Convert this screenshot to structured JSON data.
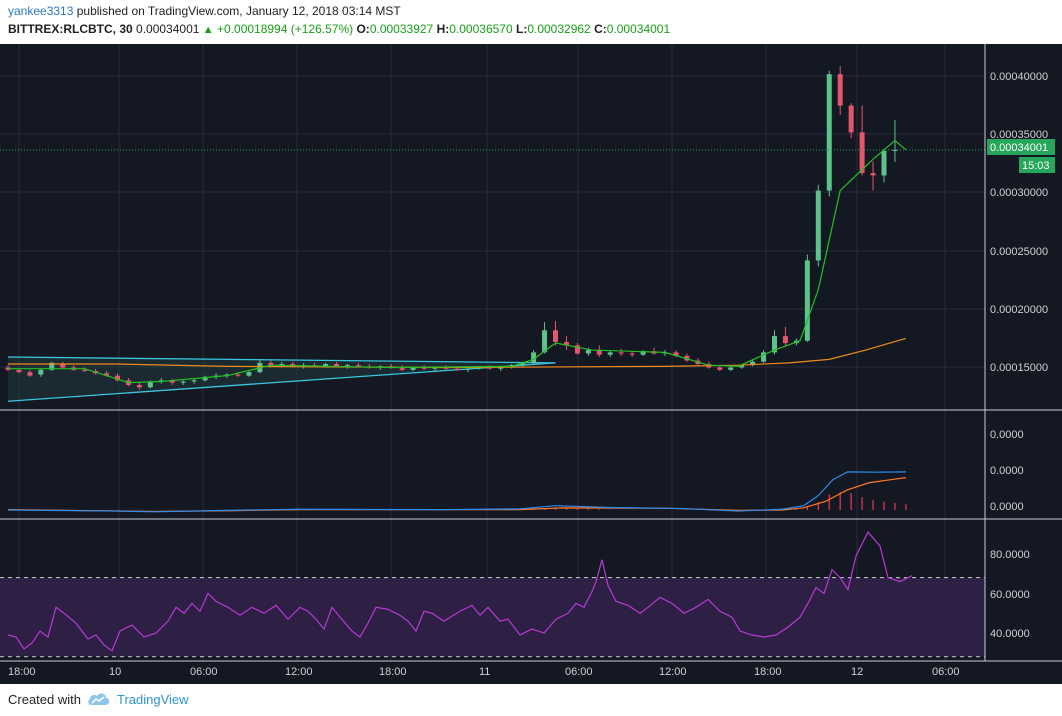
{
  "header": {
    "author": "yankee3313",
    "published_text": "published on TradingView.com, January 12, 2018 03:14 MST",
    "symbol": "BITTREX:RLCBTC, 30",
    "last_price": "0.00034001",
    "change_arrow": "▲",
    "change": "+0.00018994 (+126.57%)",
    "o_label": "O:",
    "o_value": "0.00033927",
    "h_label": "H:",
    "h_value": "0.00036570",
    "l_label": "L:",
    "l_value": "0.00032962",
    "c_label": "C:",
    "c_value": "0.00034001"
  },
  "price_axis": {
    "labels": [
      "0.00040000",
      "0.00035000",
      "0.00030000",
      "0.00025000",
      "0.00020000",
      "0.00015000"
    ],
    "last_price_tag": "0.00034001",
    "countdown_tag": "15:03"
  },
  "macd_axis": {
    "labels": [
      "0.0000",
      "0.0000",
      "0.0000"
    ]
  },
  "rsi_axis": {
    "labels": [
      "80.0000",
      "60.0000",
      "40.0000"
    ]
  },
  "time_axis": {
    "labels": [
      "18:00",
      "10",
      "06:00",
      "12:00",
      "18:00",
      "11",
      "06:00",
      "12:00",
      "18:00",
      "12",
      "06:00"
    ]
  },
  "colors": {
    "background": "#141823",
    "up_candle": "#5fc28c",
    "down_candle": "#e3566c",
    "ma_fast": "#23c123",
    "ma_slow": "#f08a1c",
    "triangle": "#39c6de",
    "macd_line": "#2e8bf0",
    "signal_line": "#ff7a1f",
    "histogram": "#d8304c",
    "rsi_line": "#b63ad3",
    "rsi_band": "#2e1f45",
    "last_price": "#26a65b"
  },
  "chart_data": {
    "type": "candlestick",
    "symbol": "BITTREX:RLCBTC",
    "interval": "30",
    "price_ylim": [
      0.00012,
      0.00043
    ],
    "candles": [
      [
        0,
        0.000153,
        0.000155,
        0.00015,
        0.000151
      ],
      [
        3,
        0.000151,
        0.000153,
        0.000148,
        0.000149
      ],
      [
        6,
        0.000149,
        0.000151,
        0.000145,
        0.000146
      ],
      [
        9,
        0.000147,
        0.000152,
        0.000145,
        0.000151
      ],
      [
        12,
        0.000151,
        0.000158,
        0.00015,
        0.000157
      ],
      [
        15,
        0.000156,
        0.000158,
        0.000152,
        0.000153
      ],
      [
        18,
        0.000153,
        0.000155,
        0.00015,
        0.000151
      ],
      [
        21,
        0.000151,
        0.000153,
        0.000149,
        0.00015
      ],
      [
        24,
        0.00015,
        0.000152,
        0.000147,
        0.000148
      ],
      [
        27,
        0.000148,
        0.00015,
        0.000145,
        0.000146
      ],
      [
        30,
        0.000146,
        0.000148,
        0.000141,
        0.000142
      ],
      [
        33,
        0.000142,
        0.000144,
        0.000137,
        0.000138
      ],
      [
        36,
        0.000138,
        0.00014,
        0.000134,
        0.000136
      ],
      [
        39,
        0.000136,
        0.000142,
        0.000135,
        0.000141
      ],
      [
        42,
        0.000141,
        0.000144,
        0.000139,
        0.000142
      ],
      [
        45,
        0.000142,
        0.000143,
        0.000138,
        0.00014
      ],
      [
        48,
        0.00014,
        0.000142,
        0.000138,
        0.000141
      ],
      [
        51,
        0.000141,
        0.000143,
        0.000139,
        0.000142
      ],
      [
        54,
        0.000142,
        0.000146,
        0.000141,
        0.000145
      ],
      [
        57,
        0.000145,
        0.000148,
        0.000143,
        0.000146
      ],
      [
        60,
        0.000146,
        0.000148,
        0.000144,
        0.000147
      ],
      [
        63,
        0.000147,
        0.000149,
        0.000145,
        0.000146
      ],
      [
        66,
        0.000146,
        0.00015,
        0.000145,
        0.000149
      ],
      [
        69,
        0.000149,
        0.00016,
        0.000148,
        0.000157
      ],
      [
        72,
        0.000157,
        0.000159,
        0.000153,
        0.000155
      ],
      [
        75,
        0.000155,
        0.000158,
        0.000153,
        0.000156
      ],
      [
        78,
        0.000156,
        0.000158,
        0.000153,
        0.000154
      ],
      [
        81,
        0.000154,
        0.000157,
        0.000152,
        0.000155
      ],
      [
        84,
        0.000155,
        0.000157,
        0.000153,
        0.000154
      ],
      [
        87,
        0.000154,
        0.000157,
        0.000153,
        0.000156
      ],
      [
        90,
        0.000156,
        0.000158,
        0.000153,
        0.000154
      ],
      [
        93,
        0.000154,
        0.000156,
        0.000152,
        0.000155
      ],
      [
        96,
        0.000155,
        0.000157,
        0.000153,
        0.000154
      ],
      [
        99,
        0.000154,
        0.000156,
        0.000152,
        0.000153
      ],
      [
        102,
        0.000153,
        0.000155,
        0.000151,
        0.000154
      ],
      [
        105,
        0.000154,
        0.000156,
        0.000152,
        0.000153
      ],
      [
        108,
        0.000153,
        0.000155,
        0.00015,
        0.000151
      ],
      [
        111,
        0.000151,
        0.000154,
        0.00015,
        0.000153
      ],
      [
        114,
        0.000153,
        0.000155,
        0.000151,
        0.000152
      ],
      [
        117,
        0.000152,
        0.000154,
        0.00015,
        0.000153
      ],
      [
        120,
        0.000153,
        0.000155,
        0.000151,
        0.000152
      ],
      [
        123,
        0.000152,
        0.000154,
        0.00015,
        0.000151
      ],
      [
        126,
        0.000151,
        0.000153,
        0.000149,
        0.000152
      ],
      [
        129,
        0.000152,
        0.000154,
        0.000151,
        0.000153
      ],
      [
        132,
        0.000153,
        0.000155,
        0.000151,
        0.000152
      ],
      [
        135,
        0.000152,
        0.000154,
        0.00015,
        0.000153
      ],
      [
        138,
        0.000153,
        0.000156,
        0.000152,
        0.000155
      ],
      [
        141,
        0.000155,
        0.000158,
        0.000153,
        0.000157
      ],
      [
        144,
        0.000157,
        0.000168,
        0.000156,
        0.000166
      ],
      [
        147,
        0.000166,
        0.000192,
        0.000165,
        0.000185
      ],
      [
        150,
        0.000185,
        0.000193,
        0.000172,
        0.000175
      ],
      [
        153,
        0.000175,
        0.00018,
        0.000168,
        0.000172
      ],
      [
        156,
        0.000172,
        0.000174,
        0.000164,
        0.000165
      ],
      [
        159,
        0.000165,
        0.00017,
        0.000163,
        0.000168
      ],
      [
        162,
        0.000168,
        0.000172,
        0.000162,
        0.000164
      ],
      [
        165,
        0.000164,
        0.000168,
        0.000162,
        0.000166
      ],
      [
        168,
        0.000166,
        0.000169,
        0.000163,
        0.000165
      ],
      [
        171,
        0.000165,
        0.000167,
        0.000162,
        0.000164
      ],
      [
        174,
        0.000164,
        0.000168,
        0.000163,
        0.000167
      ],
      [
        177,
        0.000167,
        0.00017,
        0.000164,
        0.000165
      ],
      [
        180,
        0.000165,
        0.000168,
        0.000163,
        0.000166
      ],
      [
        183,
        0.000166,
        0.000168,
        0.000162,
        0.000163
      ],
      [
        186,
        0.000163,
        0.000165,
        0.000158,
        0.000159
      ],
      [
        189,
        0.000159,
        0.000161,
        0.000155,
        0.000156
      ],
      [
        192,
        0.000156,
        0.000158,
        0.000152,
        0.000153
      ],
      [
        195,
        0.000153,
        0.000155,
        0.00015,
        0.000151
      ],
      [
        198,
        0.000151,
        0.000154,
        0.00015,
        0.000153
      ],
      [
        201,
        0.000153,
        0.000156,
        0.000152,
        0.000155
      ],
      [
        204,
        0.000155,
        0.00016,
        0.000154,
        0.000158
      ],
      [
        207,
        0.000158,
        0.000168,
        0.000157,
        0.000166
      ],
      [
        210,
        0.000166,
        0.000185,
        0.000164,
        0.00018
      ],
      [
        213,
        0.00018,
        0.000188,
        0.000172,
        0.000174
      ],
      [
        216,
        0.000174,
        0.000178,
        0.000172,
        0.000176
      ],
      [
        219,
        0.000176,
        0.00025,
        0.000175,
        0.000245
      ],
      [
        222,
        0.000245,
        0.00031,
        0.00024,
        0.000305
      ],
      [
        225,
        0.000305,
        0.000408,
        0.0003,
        0.000405
      ],
      [
        228,
        0.000405,
        0.000412,
        0.00037,
        0.000378
      ],
      [
        231,
        0.000378,
        0.00038,
        0.00035,
        0.000355
      ],
      [
        234,
        0.000355,
        0.000378,
        0.000318,
        0.00032
      ],
      [
        237,
        0.00032,
        0.00033,
        0.000305,
        0.000318
      ],
      [
        240,
        0.000318,
        0.00034,
        0.000312,
        0.000339
      ],
      [
        243,
        0.000339,
        0.0003657,
        0.0003296,
        0.00034
      ]
    ],
    "ma_fast": [
      [
        0,
        0.000152
      ],
      [
        21,
        0.000152
      ],
      [
        33,
        0.00014
      ],
      [
        42,
        0.000141
      ],
      [
        60,
        0.000146
      ],
      [
        72,
        0.000155
      ],
      [
        105,
        0.000153
      ],
      [
        138,
        0.000154
      ],
      [
        144,
        0.00016
      ],
      [
        150,
        0.000174
      ],
      [
        160,
        0.000168
      ],
      [
        180,
        0.000166
      ],
      [
        192,
        0.000155
      ],
      [
        200,
        0.000154
      ],
      [
        210,
        0.000168
      ],
      [
        217,
        0.000176
      ],
      [
        222,
        0.00022
      ],
      [
        228,
        0.000305
      ],
      [
        237,
        0.000332
      ],
      [
        243,
        0.000348
      ],
      [
        246,
        0.00034
      ]
    ],
    "ma_slow": [
      [
        0,
        0.000156
      ],
      [
        30,
        0.000156
      ],
      [
        60,
        0.000154
      ],
      [
        120,
        0.000153
      ],
      [
        180,
        0.000154
      ],
      [
        200,
        0.000155
      ],
      [
        214,
        0.000157
      ],
      [
        225,
        0.00016
      ],
      [
        235,
        0.000168
      ],
      [
        246,
        0.000178
      ]
    ],
    "triangle_upper": [
      [
        0,
        0.000162
      ],
      [
        150,
        0.000157
      ]
    ],
    "triangle_lower": [
      [
        0,
        0.000124
      ],
      [
        150,
        0.000157
      ]
    ],
    "macd_ylim": [
      -1.0,
      6.5
    ],
    "macd_line": [
      [
        0,
        0
      ],
      [
        30,
        -0.15
      ],
      [
        40,
        -0.25
      ],
      [
        60,
        -0.05
      ],
      [
        80,
        0.1
      ],
      [
        120,
        0.05
      ],
      [
        140,
        0.15
      ],
      [
        150,
        0.6
      ],
      [
        165,
        0.35
      ],
      [
        185,
        0.2
      ],
      [
        200,
        -0.15
      ],
      [
        212,
        0.1
      ],
      [
        218,
        0.6
      ],
      [
        222,
        2.0
      ],
      [
        226,
        4.2
      ],
      [
        230,
        5.3
      ],
      [
        238,
        5.25
      ],
      [
        246,
        5.3
      ]
    ],
    "signal_line": [
      [
        0,
        0.05
      ],
      [
        40,
        -0.2
      ],
      [
        60,
        -0.1
      ],
      [
        80,
        0.05
      ],
      [
        140,
        0.05
      ],
      [
        152,
        0.3
      ],
      [
        180,
        0.25
      ],
      [
        200,
        -0.05
      ],
      [
        212,
        0.0
      ],
      [
        218,
        0.3
      ],
      [
        224,
        1.2
      ],
      [
        230,
        2.8
      ],
      [
        236,
        3.8
      ],
      [
        246,
        4.5
      ]
    ],
    "rsi_ylim": [
      25,
      95
    ],
    "rsi_levels": [
      30,
      70
    ],
    "rsi_line": [
      [
        0,
        41
      ],
      [
        4,
        40
      ],
      [
        8,
        34
      ],
      [
        12,
        37
      ],
      [
        16,
        43
      ],
      [
        20,
        40
      ],
      [
        24,
        55
      ],
      [
        28,
        52
      ],
      [
        34,
        47
      ],
      [
        40,
        39
      ],
      [
        44,
        41
      ],
      [
        48,
        36
      ],
      [
        52,
        33
      ],
      [
        56,
        43
      ],
      [
        62,
        46
      ],
      [
        68,
        40
      ],
      [
        74,
        42
      ],
      [
        80,
        48
      ],
      [
        84,
        55
      ],
      [
        88,
        52
      ],
      [
        92,
        57
      ],
      [
        96,
        53
      ],
      [
        100,
        62
      ],
      [
        104,
        58
      ],
      [
        110,
        55
      ],
      [
        116,
        51
      ],
      [
        122,
        55
      ],
      [
        128,
        52
      ],
      [
        134,
        56
      ],
      [
        140,
        49
      ],
      [
        146,
        55
      ],
      [
        150,
        53
      ],
      [
        154,
        49
      ],
      [
        158,
        44
      ],
      [
        162,
        55
      ],
      [
        166,
        50
      ],
      [
        172,
        43
      ],
      [
        176,
        40
      ],
      [
        180,
        47
      ],
      [
        184,
        55
      ],
      [
        190,
        54
      ],
      [
        196,
        51
      ],
      [
        200,
        48
      ],
      [
        204,
        43
      ],
      [
        208,
        53
      ],
      [
        212,
        52
      ],
      [
        218,
        48
      ],
      [
        226,
        53
      ],
      [
        232,
        56
      ],
      [
        236,
        51
      ],
      [
        240,
        55
      ],
      [
        246,
        48
      ],
      [
        250,
        49
      ],
      [
        256,
        41
      ],
      [
        262,
        44
      ],
      [
        268,
        42
      ],
      [
        274,
        49
      ],
      [
        280,
        52
      ],
      [
        284,
        57
      ],
      [
        288,
        55
      ],
      [
        292,
        63
      ],
      [
        294,
        68
      ],
      [
        297,
        79
      ],
      [
        300,
        66
      ],
      [
        304,
        58
      ],
      [
        310,
        56
      ],
      [
        316,
        52
      ],
      [
        320,
        55
      ],
      [
        326,
        60
      ],
      [
        332,
        57
      ],
      [
        338,
        52
      ],
      [
        344,
        55
      ],
      [
        350,
        59
      ],
      [
        356,
        53
      ],
      [
        362,
        50
      ],
      [
        366,
        43
      ],
      [
        372,
        41
      ],
      [
        378,
        40
      ],
      [
        384,
        41
      ],
      [
        390,
        45
      ],
      [
        396,
        50
      ],
      [
        400,
        57
      ],
      [
        404,
        65
      ],
      [
        408,
        62
      ],
      [
        412,
        74
      ],
      [
        416,
        70
      ],
      [
        420,
        64
      ],
      [
        424,
        81
      ],
      [
        430,
        93
      ],
      [
        436,
        86
      ],
      [
        440,
        70
      ],
      [
        446,
        68
      ],
      [
        452,
        71
      ]
    ]
  },
  "footer": {
    "created_with": "Created with",
    "brand": "TradingView"
  }
}
